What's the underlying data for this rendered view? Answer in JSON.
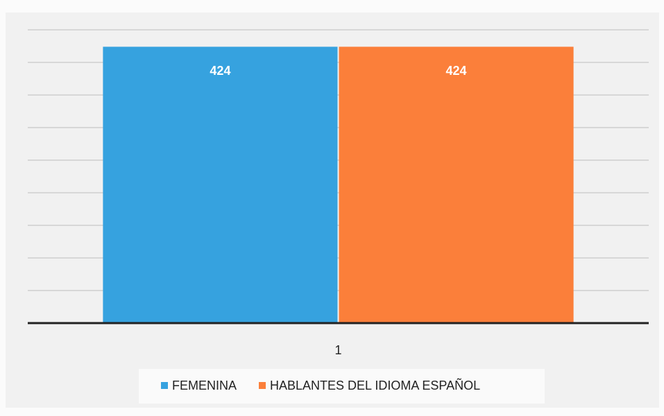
{
  "chart_data": {
    "type": "bar",
    "categories": [
      "1"
    ],
    "series": [
      {
        "name": "FEMENINA",
        "color": "#36a2df",
        "values": [
          424
        ]
      },
      {
        "name": "HABLANTES DEL IDIOMA ESPAÑOL",
        "color": "#fb7f3a",
        "values": [
          424
        ]
      }
    ],
    "ylim": [
      0,
      450
    ],
    "yticks": [
      0,
      50,
      100,
      150,
      200,
      250,
      300,
      350,
      400,
      450
    ],
    "grid": true,
    "legend": "bottom"
  }
}
